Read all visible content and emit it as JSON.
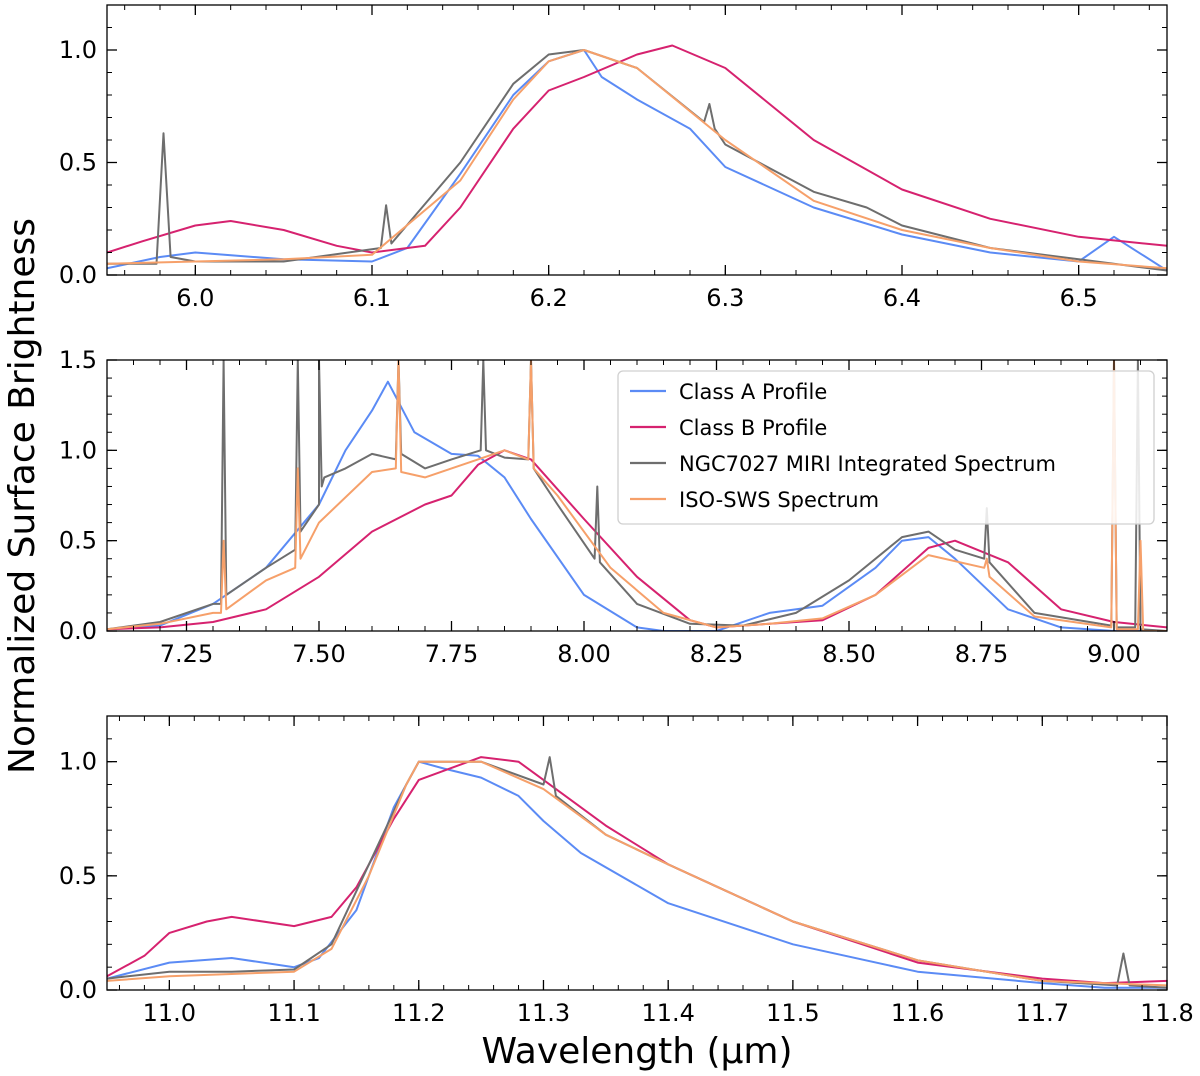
{
  "chart_data": {
    "type": "line",
    "ylabel": "Normalized Surface Brightness",
    "xlabel": "Wavelength (μm)",
    "legend": {
      "placement": "top-right of middle panel",
      "entries": [
        {
          "label": "Class A Profile",
          "color": "#5b8bf5"
        },
        {
          "label": "Class B Profile",
          "color": "#d6226f"
        },
        {
          "label": "NGC7027 MIRI Integrated Spectrum",
          "color": "#6e6e6e"
        },
        {
          "label": "ISO-SWS Spectrum",
          "color": "#f6a06a"
        }
      ]
    },
    "panels": [
      {
        "id": "top",
        "xlim": [
          5.95,
          6.55
        ],
        "ylim": [
          0,
          1.2
        ],
        "xticks": [
          6.0,
          6.1,
          6.2,
          6.3,
          6.4,
          6.5
        ],
        "xtick_labels": [
          "6.0",
          "6.1",
          "6.2",
          "6.3",
          "6.4",
          "6.5"
        ],
        "yticks": [
          0.0,
          0.5,
          1.0
        ],
        "ytick_labels": [
          "0.0",
          "0.5",
          "1.0"
        ],
        "series": [
          {
            "name": "Class A Profile",
            "color": "#5b8bf5",
            "x": [
              5.95,
              5.98,
              6.0,
              6.05,
              6.1,
              6.12,
              6.15,
              6.18,
              6.2,
              6.22,
              6.23,
              6.25,
              6.28,
              6.3,
              6.35,
              6.4,
              6.45,
              6.5,
              6.52,
              6.55
            ],
            "y": [
              0.03,
              0.08,
              0.1,
              0.07,
              0.06,
              0.12,
              0.45,
              0.8,
              0.95,
              1.0,
              0.88,
              0.78,
              0.65,
              0.48,
              0.3,
              0.18,
              0.1,
              0.06,
              0.17,
              0.02
            ]
          },
          {
            "name": "Class B Profile",
            "color": "#d6226f",
            "x": [
              5.95,
              5.97,
              6.0,
              6.02,
              6.05,
              6.08,
              6.1,
              6.13,
              6.15,
              6.18,
              6.2,
              6.22,
              6.25,
              6.27,
              6.3,
              6.35,
              6.4,
              6.45,
              6.5,
              6.55
            ],
            "y": [
              0.1,
              0.15,
              0.22,
              0.24,
              0.2,
              0.13,
              0.1,
              0.13,
              0.3,
              0.65,
              0.82,
              0.88,
              0.98,
              1.02,
              0.92,
              0.6,
              0.38,
              0.25,
              0.17,
              0.13
            ]
          },
          {
            "name": "NGC7027 MIRI Integrated Spectrum",
            "color": "#6e6e6e",
            "x": [
              5.95,
              5.978,
              5.982,
              5.986,
              6.0,
              6.05,
              6.105,
              6.108,
              6.111,
              6.15,
              6.18,
              6.2,
              6.22,
              6.25,
              6.288,
              6.291,
              6.294,
              6.3,
              6.35,
              6.38,
              6.4,
              6.45,
              6.5,
              6.55
            ],
            "y": [
              0.05,
              0.05,
              0.63,
              0.08,
              0.06,
              0.06,
              0.12,
              0.31,
              0.14,
              0.5,
              0.85,
              0.98,
              1.0,
              0.92,
              0.68,
              0.76,
              0.65,
              0.58,
              0.37,
              0.3,
              0.22,
              0.12,
              0.07,
              0.02
            ]
          },
          {
            "name": "ISO-SWS Spectrum",
            "color": "#f6a06a",
            "x": [
              5.95,
              6.0,
              6.05,
              6.1,
              6.15,
              6.18,
              6.2,
              6.22,
              6.25,
              6.3,
              6.35,
              6.4,
              6.45,
              6.5,
              6.55
            ],
            "y": [
              0.05,
              0.06,
              0.07,
              0.09,
              0.42,
              0.78,
              0.95,
              1.0,
              0.92,
              0.6,
              0.33,
              0.2,
              0.12,
              0.06,
              0.03
            ]
          }
        ]
      },
      {
        "id": "middle",
        "xlim": [
          7.1,
          9.1
        ],
        "ylim": [
          0,
          1.5
        ],
        "xticks": [
          7.25,
          7.5,
          7.75,
          8.0,
          8.25,
          8.5,
          8.75,
          9.0
        ],
        "xtick_labels": [
          "7.25",
          "7.50",
          "7.75",
          "8.00",
          "8.25",
          "8.50",
          "8.75",
          "9.00"
        ],
        "yticks": [
          0.0,
          0.5,
          1.0,
          1.5
        ],
        "ytick_labels": [
          "0.0",
          "0.5",
          "1.0",
          "1.5"
        ],
        "series": [
          {
            "name": "Class A Profile",
            "color": "#5b8bf5",
            "x": [
              7.1,
              7.2,
              7.3,
              7.4,
              7.5,
              7.55,
              7.6,
              7.63,
              7.68,
              7.75,
              7.8,
              7.85,
              7.9,
              8.0,
              8.1,
              8.15,
              8.25,
              8.35,
              8.45,
              8.55,
              8.6,
              8.65,
              8.7,
              8.8,
              8.9,
              9.0,
              9.1
            ],
            "y": [
              0.01,
              0.03,
              0.15,
              0.35,
              0.7,
              1.0,
              1.22,
              1.38,
              1.1,
              0.98,
              0.97,
              0.85,
              0.62,
              0.2,
              0.02,
              0.0,
              0.0,
              0.1,
              0.14,
              0.35,
              0.5,
              0.52,
              0.4,
              0.12,
              0.02,
              0.0,
              0.0
            ]
          },
          {
            "name": "Class B Profile",
            "color": "#d6226f",
            "x": [
              7.1,
              7.2,
              7.3,
              7.4,
              7.5,
              7.6,
              7.7,
              7.75,
              7.8,
              7.85,
              7.9,
              8.0,
              8.1,
              8.2,
              8.25,
              8.35,
              8.45,
              8.55,
              8.65,
              8.7,
              8.8,
              8.9,
              9.0,
              9.1
            ],
            "y": [
              0.01,
              0.02,
              0.05,
              0.12,
              0.3,
              0.55,
              0.7,
              0.75,
              0.92,
              1.0,
              0.95,
              0.62,
              0.3,
              0.06,
              0.02,
              0.04,
              0.06,
              0.2,
              0.46,
              0.5,
              0.38,
              0.12,
              0.05,
              0.02
            ]
          },
          {
            "name": "NGC7027 MIRI Integrated Spectrum",
            "color": "#6e6e6e",
            "x": [
              7.1,
              7.2,
              7.3,
              7.315,
              7.32,
              7.325,
              7.4,
              7.455,
              7.46,
              7.465,
              7.5,
              7.5,
              7.505,
              7.51,
              7.55,
              7.6,
              7.645,
              7.65,
              7.655,
              7.7,
              7.75,
              7.805,
              7.81,
              7.815,
              7.85,
              7.895,
              7.9,
              7.905,
              7.95,
              8.02,
              8.025,
              8.03,
              8.1,
              8.2,
              8.3,
              8.4,
              8.5,
              8.6,
              8.65,
              8.7,
              8.755,
              8.76,
              8.765,
              8.85,
              8.995,
              9.0,
              9.005,
              9.04,
              9.045,
              9.05,
              9.1
            ],
            "y": [
              0.01,
              0.05,
              0.15,
              0.15,
              1.5,
              0.2,
              0.35,
              0.45,
              1.5,
              0.55,
              0.7,
              1.5,
              0.8,
              0.85,
              0.9,
              0.98,
              0.95,
              1.5,
              0.98,
              0.9,
              0.95,
              1.0,
              1.5,
              1.0,
              0.96,
              0.95,
              1.5,
              0.9,
              0.7,
              0.4,
              0.8,
              0.38,
              0.15,
              0.04,
              0.03,
              0.1,
              0.28,
              0.52,
              0.55,
              0.45,
              0.4,
              0.68,
              0.38,
              0.1,
              0.03,
              1.5,
              0.02,
              0.02,
              1.5,
              0.01,
              0.0
            ]
          },
          {
            "name": "ISO-SWS Spectrum",
            "color": "#f6a06a",
            "x": [
              7.1,
              7.2,
              7.3,
              7.315,
              7.32,
              7.325,
              7.4,
              7.455,
              7.46,
              7.465,
              7.5,
              7.6,
              7.645,
              7.65,
              7.655,
              7.7,
              7.8,
              7.85,
              7.895,
              7.9,
              7.905,
              7.95,
              8.05,
              8.15,
              8.25,
              8.35,
              8.45,
              8.55,
              8.65,
              8.755,
              8.76,
              8.765,
              8.85,
              8.995,
              9.0,
              9.005,
              9.045,
              9.05,
              9.055,
              9.1
            ],
            "y": [
              0.01,
              0.04,
              0.1,
              0.1,
              0.5,
              0.12,
              0.28,
              0.35,
              0.9,
              0.4,
              0.6,
              0.88,
              0.9,
              1.5,
              0.88,
              0.85,
              0.95,
              1.0,
              0.95,
              1.5,
              0.9,
              0.75,
              0.35,
              0.1,
              0.02,
              0.04,
              0.07,
              0.2,
              0.42,
              0.35,
              0.4,
              0.3,
              0.08,
              0.02,
              1.5,
              0.01,
              0.01,
              0.5,
              0.0,
              0.0
            ]
          }
        ]
      },
      {
        "id": "bottom",
        "xlim": [
          10.95,
          11.8
        ],
        "ylim": [
          0,
          1.2
        ],
        "xticks": [
          11.0,
          11.1,
          11.2,
          11.3,
          11.4,
          11.5,
          11.6,
          11.7,
          11.8
        ],
        "xtick_labels": [
          "11.0",
          "11.1",
          "11.2",
          "11.3",
          "11.4",
          "11.5",
          "11.6",
          "11.7",
          "11.8"
        ],
        "yticks": [
          0.0,
          0.5,
          1.0
        ],
        "ytick_labels": [
          "0.0",
          "0.5",
          "1.0"
        ],
        "series": [
          {
            "name": "Class A Profile",
            "color": "#5b8bf5",
            "x": [
              10.95,
              11.0,
              11.05,
              11.1,
              11.12,
              11.15,
              11.18,
              11.2,
              11.22,
              11.25,
              11.28,
              11.3,
              11.33,
              11.4,
              11.5,
              11.6,
              11.7,
              11.75,
              11.8
            ],
            "y": [
              0.05,
              0.12,
              0.14,
              0.1,
              0.14,
              0.35,
              0.8,
              1.0,
              0.97,
              0.93,
              0.85,
              0.74,
              0.6,
              0.38,
              0.2,
              0.08,
              0.03,
              0.01,
              0.01
            ]
          },
          {
            "name": "Class B Profile",
            "color": "#d6226f",
            "x": [
              10.95,
              10.98,
              11.0,
              11.03,
              11.05,
              11.1,
              11.13,
              11.15,
              11.18,
              11.2,
              11.23,
              11.25,
              11.28,
              11.3,
              11.35,
              11.4,
              11.5,
              11.6,
              11.7,
              11.75,
              11.8
            ],
            "y": [
              0.06,
              0.15,
              0.25,
              0.3,
              0.32,
              0.28,
              0.32,
              0.45,
              0.75,
              0.92,
              0.98,
              1.02,
              1.0,
              0.92,
              0.72,
              0.55,
              0.3,
              0.12,
              0.05,
              0.03,
              0.04
            ]
          },
          {
            "name": "NGC7027 MIRI Integrated Spectrum",
            "color": "#6e6e6e",
            "x": [
              10.95,
              11.0,
              11.05,
              11.1,
              11.13,
              11.16,
              11.19,
              11.2,
              11.25,
              11.3,
              11.305,
              11.31,
              11.35,
              11.4,
              11.5,
              11.6,
              11.7,
              11.76,
              11.765,
              11.77,
              11.8
            ],
            "y": [
              0.05,
              0.08,
              0.08,
              0.09,
              0.2,
              0.55,
              0.9,
              1.0,
              1.0,
              0.9,
              1.02,
              0.85,
              0.68,
              0.55,
              0.3,
              0.13,
              0.04,
              0.02,
              0.16,
              0.02,
              0.01
            ]
          },
          {
            "name": "ISO-SWS Spectrum",
            "color": "#f6a06a",
            "x": [
              10.95,
              11.0,
              11.05,
              11.1,
              11.13,
              11.16,
              11.19,
              11.2,
              11.25,
              11.3,
              11.35,
              11.4,
              11.5,
              11.6,
              11.7,
              11.8
            ],
            "y": [
              0.04,
              0.06,
              0.07,
              0.08,
              0.18,
              0.5,
              0.9,
              1.0,
              1.0,
              0.88,
              0.68,
              0.55,
              0.3,
              0.13,
              0.04,
              0.02
            ]
          }
        ]
      }
    ]
  }
}
